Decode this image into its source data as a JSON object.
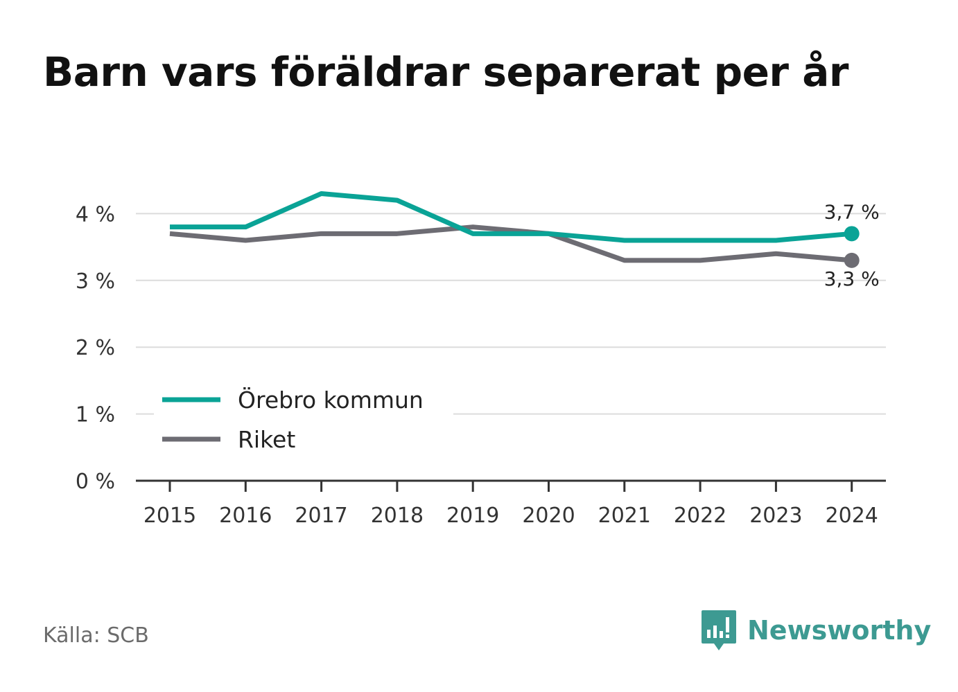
{
  "title": "Barn vars föräldrar separerat per år",
  "source": "Källa: SCB",
  "brand": "Newsworthy",
  "colors": {
    "orebro": "#0aa396",
    "riket": "#6d6c73",
    "grid": "#dcdcdc",
    "axis": "#333333",
    "brand": "#3d9a92"
  },
  "chart_data": {
    "type": "line",
    "title": "Barn vars föräldrar separerat per år",
    "x": [
      "2015",
      "2016",
      "2017",
      "2018",
      "2019",
      "2020",
      "2021",
      "2022",
      "2023",
      "2024"
    ],
    "y_ticks": [
      0,
      1,
      2,
      3,
      4
    ],
    "y_tick_labels": [
      "0 %",
      "1 %",
      "2 %",
      "3 %",
      "4 %"
    ],
    "ylim": [
      0,
      4.5
    ],
    "grid": true,
    "legend_position": "bottom-left",
    "series": [
      {
        "name": "Örebro kommun",
        "color": "#0aa396",
        "values": [
          3.8,
          3.8,
          4.3,
          4.2,
          3.7,
          3.7,
          3.6,
          3.6,
          3.6,
          3.7
        ],
        "end_label": "3,7 %"
      },
      {
        "name": "Riket",
        "color": "#6d6c73",
        "values": [
          3.7,
          3.6,
          3.7,
          3.7,
          3.8,
          3.7,
          3.3,
          3.3,
          3.4,
          3.3
        ],
        "end_label": "3,3 %"
      }
    ]
  }
}
